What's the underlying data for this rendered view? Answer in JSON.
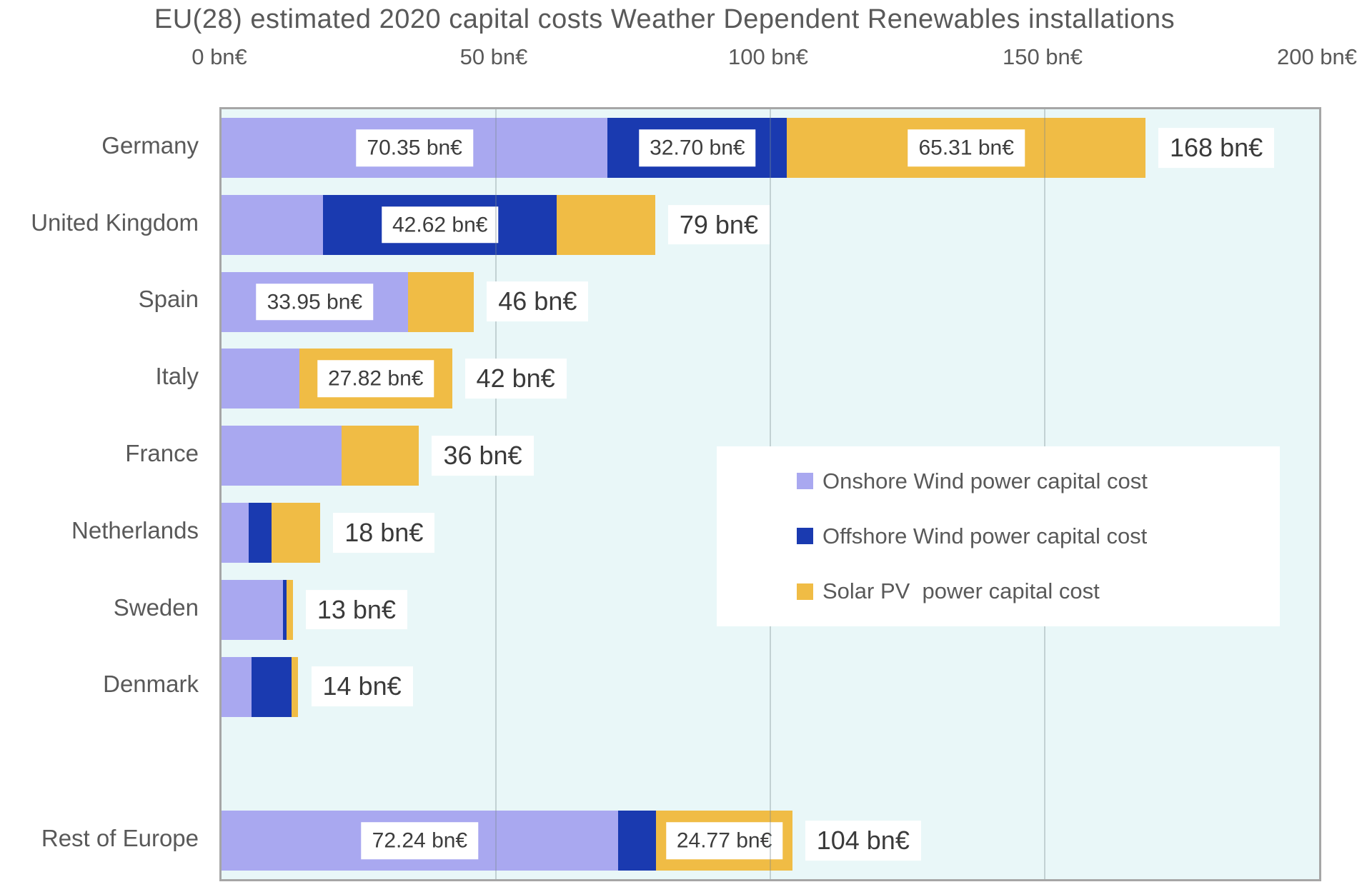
{
  "title": "EU(28) estimated 2020 capital costs Weather Dependent Renewables installations",
  "chart_data": {
    "type": "bar",
    "orientation": "horizontal",
    "stacked": true,
    "title": "EU(28) estimated 2020 capital costs Weather Dependent Renewables installations",
    "x_unit": "bn€",
    "xlim": [
      0,
      200
    ],
    "x_ticks": [
      0,
      50,
      100,
      150,
      200
    ],
    "x_tick_labels": [
      "0 bn€",
      "50 bn€",
      "100 bn€",
      "150 bn€",
      "200 bn€"
    ],
    "grid": "vertical",
    "legend_position": "center-right",
    "categories": [
      "Germany",
      "United Kingdom",
      "Spain",
      "Italy",
      "France",
      "Netherlands",
      "Sweden",
      "Denmark",
      "",
      "Rest of Europe"
    ],
    "series": [
      {
        "name": "Onshore Wind power capital cost",
        "color": "#a9a8f0",
        "values": [
          70.35,
          18.5,
          33.95,
          14.18,
          21.9,
          4.9,
          11.2,
          5.5,
          null,
          72.24
        ]
      },
      {
        "name": "Offshore Wind power capital cost",
        "color": "#1a3ab0",
        "values": [
          32.7,
          42.62,
          0,
          0,
          0,
          4.2,
          0.6,
          7.2,
          null,
          6.99
        ]
      },
      {
        "name": "Solar PV  power capital cost",
        "color": "#f0bc45",
        "values": [
          65.31,
          17.9,
          12.05,
          27.82,
          14.1,
          8.9,
          1.2,
          1.3,
          null,
          24.77
        ]
      }
    ],
    "segment_labels": [
      [
        "70.35 bn€",
        "32.70 bn€",
        "65.31 bn€"
      ],
      [
        null,
        "42.62 bn€",
        null
      ],
      [
        "33.95 bn€",
        null,
        null
      ],
      [
        null,
        null,
        "27.82 bn€"
      ],
      [
        null,
        null,
        null
      ],
      [
        null,
        null,
        null
      ],
      [
        null,
        null,
        null
      ],
      [
        null,
        null,
        null
      ],
      null,
      [
        "72.24 bn€",
        null,
        "24.77 bn€"
      ]
    ],
    "total_labels": [
      "168 bn€",
      "79 bn€",
      "46 bn€",
      "42 bn€",
      "36 bn€",
      "18 bn€",
      "13 bn€",
      "14 bn€",
      null,
      "104 bn€"
    ]
  },
  "colors": {
    "plot_background": "#e9f7f8",
    "plot_border": "#a6a6a6",
    "text_gray": "#595959",
    "label_chip_text": "#3d3d3d",
    "onshore": "#a9a8f0",
    "offshore": "#1a3ab0",
    "solar": "#f0bc45"
  }
}
